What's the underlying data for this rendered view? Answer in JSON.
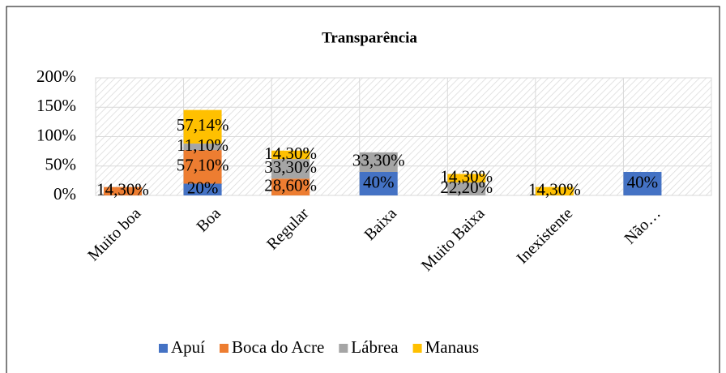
{
  "chart_data": {
    "type": "bar",
    "stacked": true,
    "title": "Transparência",
    "categories": [
      "Muito boa",
      "Boa",
      "Regular",
      "Baixa",
      "Muito Baixa",
      "Inexistente",
      "Não…"
    ],
    "series": [
      {
        "name": "Apuí",
        "color": "#4472c4",
        "values": [
          null,
          20,
          null,
          40,
          null,
          null,
          40
        ],
        "value_labels": [
          null,
          "20%",
          null,
          "40%",
          null,
          null,
          "40%"
        ]
      },
      {
        "name": "Boca do Acre",
        "color": "#ed7d31",
        "values": [
          14.3,
          57.1,
          28.6,
          null,
          null,
          null,
          null
        ],
        "value_labels": [
          "14,30%",
          "57,10%",
          "28,60%",
          null,
          null,
          null,
          null
        ]
      },
      {
        "name": "Lábrea",
        "color": "#a5a5a5",
        "values": [
          null,
          11.1,
          33.3,
          33.3,
          22.2,
          null,
          null
        ],
        "value_labels": [
          null,
          "11,10%",
          "33,30%",
          "33,30%",
          "22,20%",
          null,
          null
        ]
      },
      {
        "name": "Manaus",
        "color": "#ffc000",
        "values": [
          null,
          57.14,
          14.3,
          null,
          14.3,
          14.3,
          null
        ],
        "value_labels": [
          null,
          "57,14%",
          "14,30%",
          null,
          "14,30%",
          "14,30%",
          null
        ]
      }
    ],
    "ylim": [
      0,
      200
    ],
    "yticks": [
      {
        "value": 0,
        "label": "0%"
      },
      {
        "value": 50,
        "label": "50%"
      },
      {
        "value": 100,
        "label": "100%"
      },
      {
        "value": 150,
        "label": "150%"
      },
      {
        "value": 200,
        "label": "200%"
      }
    ],
    "legend": "bottom"
  }
}
